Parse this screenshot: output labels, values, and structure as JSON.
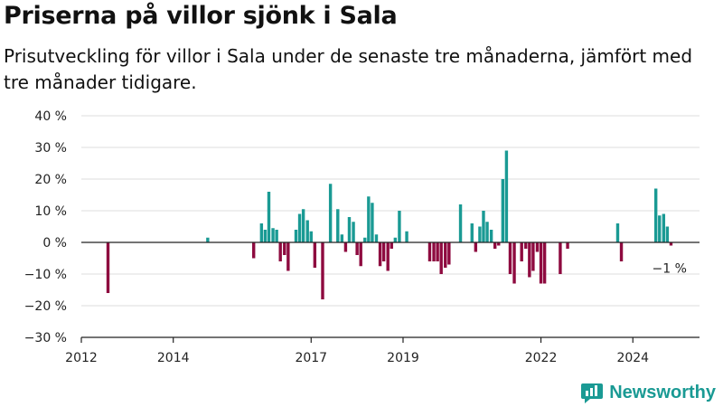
{
  "header": {
    "title": "Priserna på villor sjönk i Sala",
    "subtitle": "Prisutveckling för villor i Sala under de senaste tre månaderna, jämfört med tre månader tidigare."
  },
  "brand": {
    "name": "Newsworthy",
    "icon": "bar-chart-logo-icon"
  },
  "colors": {
    "positive": "#1a9a94",
    "negative": "#8e0a3f",
    "zero_line": "#222222",
    "grid": "#dddddd"
  },
  "chart_data": {
    "type": "bar",
    "title": "Priserna på villor sjönk i Sala",
    "subtitle": "Prisutveckling för villor i Sala under de senaste tre månaderna, jämfört med tre månader tidigare.",
    "xlabel": "",
    "ylabel": "",
    "xlim": [
      2012.0,
      2025.45
    ],
    "ylim": [
      -30,
      40
    ],
    "grid": true,
    "x_ticks": [
      "2012",
      "2014",
      "2017",
      "2019",
      "2022",
      "2024"
    ],
    "y_ticks": [
      "40 %",
      "30 %",
      "20 %",
      "10 %",
      "0 %",
      "−10 %",
      "−20 %",
      "−30 %"
    ],
    "annotation": "−1 %",
    "series": [
      {
        "x": [
          2012.58,
          2014.75,
          2015.75,
          2015.92,
          2016.0,
          2016.08,
          2016.17,
          2016.25,
          2016.33,
          2016.42,
          2016.5,
          2016.67,
          2016.75,
          2016.83,
          2016.92,
          2017.0,
          2017.08,
          2017.25,
          2017.42,
          2017.58,
          2017.67,
          2017.75,
          2017.83,
          2017.92,
          2018.0,
          2018.08,
          2018.17,
          2018.25,
          2018.33,
          2018.42,
          2018.5,
          2018.58,
          2018.67,
          2018.75,
          2018.83,
          2018.92,
          2019.08,
          2019.58,
          2019.67,
          2019.75,
          2019.83,
          2019.92,
          2020.0,
          2020.25,
          2020.5,
          2020.58,
          2020.67,
          2020.75,
          2020.83,
          2020.92,
          2021.0,
          2021.08,
          2021.17,
          2021.25,
          2021.33,
          2021.42,
          2021.58,
          2021.67,
          2021.75,
          2021.83,
          2021.92,
          2022.0,
          2022.08,
          2022.42,
          2022.5,
          2022.58,
          2022.75,
          2023.67,
          2023.75,
          2024.5,
          2024.58,
          2024.67,
          2024.75,
          2024.83
        ],
        "values": [
          -16,
          1.5,
          -5,
          6,
          4,
          16,
          4.5,
          4,
          -6,
          -4,
          -9,
          4,
          9,
          10.5,
          7,
          3.5,
          -8,
          -18,
          18.5,
          10.5,
          2.5,
          -3,
          8,
          6.5,
          -4,
          -7.5,
          1.5,
          14.5,
          12.5,
          2.5,
          -7.5,
          -6,
          -9,
          -2,
          1.5,
          10,
          3.5,
          -6,
          -6,
          -6,
          -10,
          -8,
          -7,
          12,
          6,
          -3,
          5,
          10,
          6.5,
          4,
          -2,
          -1,
          20,
          29,
          -10,
          -13,
          -6,
          -2,
          -11,
          -9,
          -3,
          -13,
          -13,
          -10,
          0,
          -2,
          0,
          6,
          -6,
          17,
          8.5,
          9,
          5,
          -1
        ]
      }
    ]
  }
}
